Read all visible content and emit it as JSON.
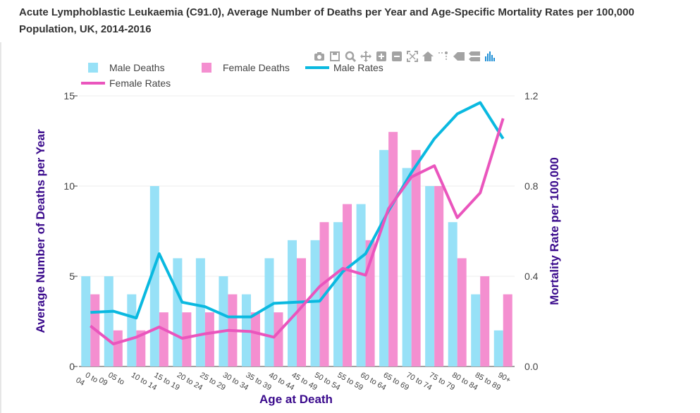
{
  "title": "Acute Lymphoblastic Leukaemia (C91.0), Average Number of Deaths per Year and Age-Specific Mortality Rates per 100,000 Population, UK, 2014-2016",
  "colors": {
    "male_bar": "#97e1f7",
    "female_bar": "#f48fd0",
    "male_line": "#0ab9e0",
    "female_line": "#ea55bd",
    "axis_title": "#3a0a8c"
  },
  "modebar_icons": [
    "camera-icon",
    "save-icon",
    "zoom-icon",
    "pan-icon",
    "zoom-in-icon",
    "zoom-out-icon",
    "autoscale-icon",
    "home-icon",
    "spike-lines-icon",
    "hover-closest-icon",
    "hover-compare-icon",
    "plotly-logo-icon"
  ],
  "chart_data": {
    "type": "bar",
    "categories": [
      "0 to 04",
      "05 to 09",
      "10 to 14",
      "15 to 19",
      "20 to 24",
      "25 to 29",
      "30 to 34",
      "35 to 39",
      "40 to 44",
      "45 to 49",
      "50 to 54",
      "55 to 59",
      "60 to 64",
      "65 to 69",
      "70 to 74",
      "75 to 79",
      "80 to 84",
      "85 to 89",
      "90+"
    ],
    "tick_labels": [
      "0 to\n04",
      "05 to\n09",
      "10 to 14",
      "15 to 19",
      "20 to 24",
      "25 to 29",
      "30 to 34",
      "35 to 39",
      "40 to 44",
      "45 to 49",
      "50 to 54",
      "55 to 59",
      "60 to 64",
      "65 to 69",
      "70 to 74",
      "75 to 79",
      "80 to 84",
      "85 to 89",
      "90+"
    ],
    "bar_series": [
      {
        "name": "Male Deaths",
        "values": [
          5,
          5,
          4,
          10,
          6,
          6,
          5,
          4,
          6,
          7,
          7,
          8,
          9,
          12,
          11,
          10,
          8,
          4,
          2
        ]
      },
      {
        "name": "Female Deaths",
        "values": [
          4,
          2,
          2,
          3,
          3,
          3,
          4,
          3,
          3,
          6,
          8,
          9,
          7,
          13,
          12,
          10,
          6,
          5,
          4
        ]
      }
    ],
    "line_series": [
      {
        "name": "Male Rates",
        "values": [
          0.24,
          0.245,
          0.215,
          0.5,
          0.285,
          0.265,
          0.22,
          0.22,
          0.28,
          0.285,
          0.29,
          0.42,
          0.5,
          0.69,
          0.86,
          1.01,
          1.12,
          1.17,
          1.01
        ]
      },
      {
        "name": "Female Rates",
        "values": [
          0.18,
          0.1,
          0.13,
          0.175,
          0.125,
          0.145,
          0.16,
          0.155,
          0.13,
          0.24,
          0.355,
          0.435,
          0.405,
          0.7,
          0.84,
          0.89,
          0.66,
          0.77,
          1.1
        ]
      }
    ],
    "xlabel": "Age at Death",
    "ylabel": "Average Number of Deaths per Year",
    "y2label": "Mortality Rate per 100,000",
    "ylim": [
      0,
      15
    ],
    "y2lim": [
      0,
      1.2
    ],
    "yticks": [
      "0",
      "5",
      "10",
      "15"
    ],
    "y2ticks": [
      "0.0",
      "0.4",
      "0.8",
      "1.2"
    ],
    "legend_position": "top-left",
    "grid": true
  }
}
